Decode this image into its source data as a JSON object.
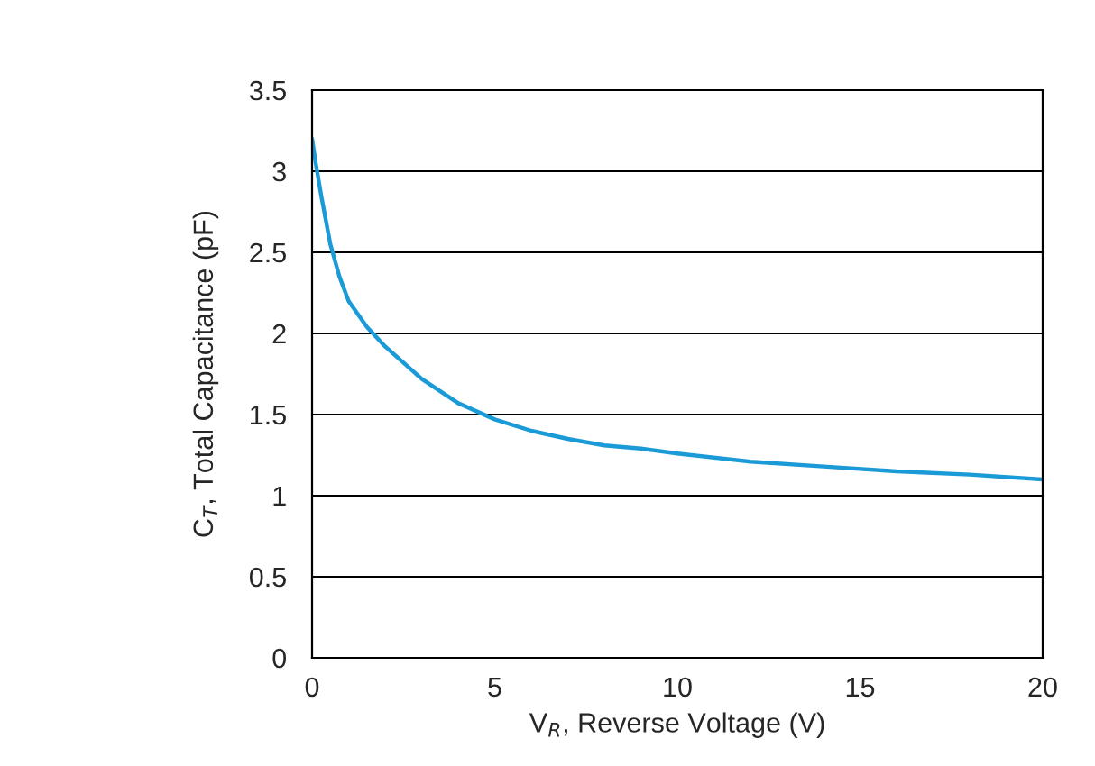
{
  "chart_data": {
    "type": "line",
    "xlabel": "V$_{R}$, Reverse Voltage (V)",
    "ylabel": "C$_{T}$, Total Capacitance (pF)",
    "x": [
      0,
      0.1,
      0.25,
      0.5,
      0.75,
      1,
      1.5,
      2,
      3,
      4,
      5,
      6,
      7,
      8,
      9,
      10,
      12,
      14,
      16,
      18,
      20
    ],
    "series": [
      {
        "color": "#1a9ad6",
        "values": [
          3.2,
          3.05,
          2.85,
          2.55,
          2.35,
          2.2,
          2.04,
          1.92,
          1.72,
          1.57,
          1.47,
          1.4,
          1.35,
          1.31,
          1.29,
          1.26,
          1.21,
          1.18,
          1.15,
          1.13,
          1.1
        ]
      }
    ],
    "xlim": [
      0,
      20
    ],
    "xticks": [
      0,
      5,
      10,
      15,
      20
    ],
    "ylim": [
      0,
      3.5
    ],
    "yticks": [
      0,
      0.5,
      1,
      1.5,
      2,
      2.5,
      3,
      3.5
    ],
    "grid": "y",
    "marker": "none",
    "line_style": "solid"
  }
}
